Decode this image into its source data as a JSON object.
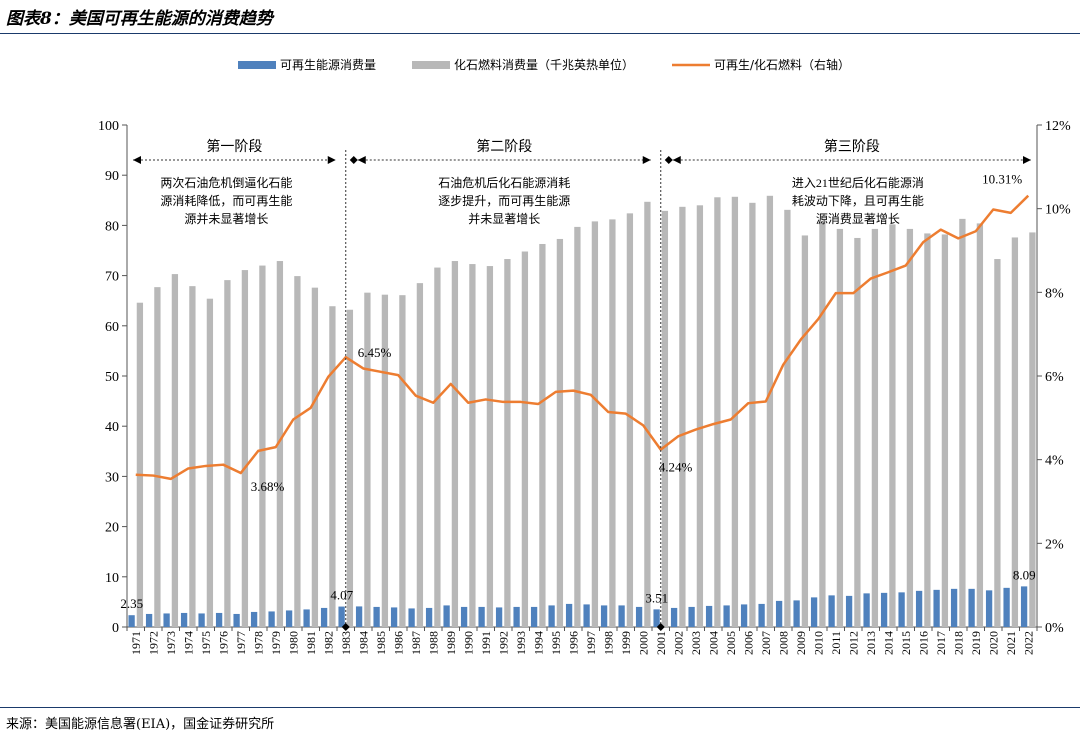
{
  "title": "图表8：美国可再生能源的消费趋势",
  "source": "来源：美国能源信息署(EIA)，国金证券研究所",
  "colors": {
    "renewable": "#4f81bd",
    "fossil": "#b8b8b8",
    "ratio": "#ed7d31",
    "rule": "#1a3a6b"
  },
  "chart_data": {
    "type": "bar",
    "categories": [
      "1971",
      "1972",
      "1973",
      "1974",
      "1975",
      "1976",
      "1977",
      "1978",
      "1979",
      "1980",
      "1981",
      "1982",
      "1983",
      "1984",
      "1985",
      "1986",
      "1987",
      "1988",
      "1989",
      "1990",
      "1991",
      "1992",
      "1993",
      "1994",
      "1995",
      "1996",
      "1997",
      "1998",
      "1999",
      "2000",
      "2001",
      "2002",
      "2003",
      "2004",
      "2005",
      "2006",
      "2007",
      "2008",
      "2009",
      "2010",
      "2011",
      "2012",
      "2013",
      "2014",
      "2015",
      "2016",
      "2017",
      "2018",
      "2019",
      "2020",
      "2021",
      "2022"
    ],
    "series": [
      {
        "name": "可再生能源消费量",
        "type": "bar",
        "axis": "left",
        "values": [
          2.35,
          2.6,
          2.7,
          2.8,
          2.7,
          2.8,
          2.6,
          3.0,
          3.1,
          3.3,
          3.5,
          3.8,
          4.07,
          4.1,
          4.0,
          3.9,
          3.7,
          3.8,
          4.3,
          4.0,
          4.0,
          3.9,
          4.0,
          4.0,
          4.3,
          4.6,
          4.5,
          4.3,
          4.3,
          4.0,
          3.51,
          3.8,
          4.0,
          4.2,
          4.3,
          4.5,
          4.6,
          5.2,
          5.3,
          5.9,
          6.3,
          6.2,
          6.7,
          6.8,
          6.9,
          7.2,
          7.4,
          7.6,
          7.6,
          7.3,
          7.8,
          8.09
        ]
      },
      {
        "name": "化石燃料消费量（千兆英热单位）",
        "type": "bar",
        "axis": "left",
        "values": [
          64.6,
          67.7,
          70.3,
          67.9,
          65.4,
          69.1,
          71.1,
          72.0,
          72.9,
          69.9,
          67.6,
          63.9,
          63.2,
          66.6,
          66.2,
          66.1,
          68.5,
          71.6,
          72.9,
          72.3,
          71.9,
          73.3,
          74.8,
          76.3,
          77.3,
          79.7,
          80.8,
          81.2,
          82.4,
          84.7,
          82.9,
          83.7,
          84.0,
          85.6,
          85.7,
          84.5,
          85.9,
          83.1,
          78.0,
          80.7,
          79.3,
          77.5,
          79.3,
          80.2,
          79.3,
          78.4,
          78.2,
          81.3,
          80.4,
          73.3,
          77.6,
          78.6
        ]
      },
      {
        "name": "可再生/化石燃料（右轴）",
        "type": "line",
        "axis": "right",
        "values": [
          3.64,
          3.62,
          3.54,
          3.79,
          3.85,
          3.88,
          3.68,
          4.21,
          4.3,
          4.96,
          5.24,
          5.98,
          6.45,
          6.18,
          6.1,
          6.02,
          5.53,
          5.36,
          5.81,
          5.36,
          5.44,
          5.38,
          5.38,
          5.33,
          5.62,
          5.65,
          5.55,
          5.14,
          5.1,
          4.82,
          4.24,
          4.56,
          4.72,
          4.85,
          4.96,
          5.35,
          5.39,
          6.27,
          6.87,
          7.36,
          7.98,
          7.98,
          8.33,
          8.48,
          8.64,
          9.2,
          9.5,
          9.29,
          9.46,
          9.98,
          9.9,
          10.31
        ]
      }
    ],
    "y_left": {
      "min": 0,
      "max": 100,
      "ticks": [
        "0",
        "10",
        "20",
        "30",
        "40",
        "50",
        "60",
        "70",
        "80",
        "90",
        "100"
      ]
    },
    "y_right": {
      "min": 0,
      "max": 12,
      "ticks": [
        "0%",
        "2%",
        "4%",
        "6%",
        "8%",
        "10%",
        "12%"
      ]
    },
    "phases": [
      {
        "label": "第一阶段",
        "from": "1971",
        "to": "1983",
        "note": [
          "两次石油危机倒逼化石能",
          "源消耗降低，而可再生能",
          "源并未显著增长"
        ]
      },
      {
        "label": "第二阶段",
        "from": "1983",
        "to": "2001",
        "note": [
          "石油危机后化石能源消耗",
          "逐步提升，而可再生能源",
          "并未显著增长"
        ]
      },
      {
        "label": "第三阶段",
        "from": "2001",
        "to": "2022",
        "note": [
          "进入21世纪后化石能源消",
          "耗波动下降，且可再生能",
          "源消费显著增长"
        ]
      }
    ],
    "bar_labels": [
      {
        "category": "1971",
        "text": "2.35"
      },
      {
        "category": "1983",
        "text": "4.07"
      },
      {
        "category": "2001",
        "text": "3.51"
      },
      {
        "category": "2022",
        "text": "8.09"
      }
    ],
    "line_labels": [
      {
        "category": "1977",
        "text": "3.68%"
      },
      {
        "category": "1983",
        "text": "6.45%"
      },
      {
        "category": "2001",
        "text": "4.24%"
      },
      {
        "category": "2022",
        "text": "10.31%"
      }
    ],
    "legend_position": "top-center",
    "grid": false
  }
}
